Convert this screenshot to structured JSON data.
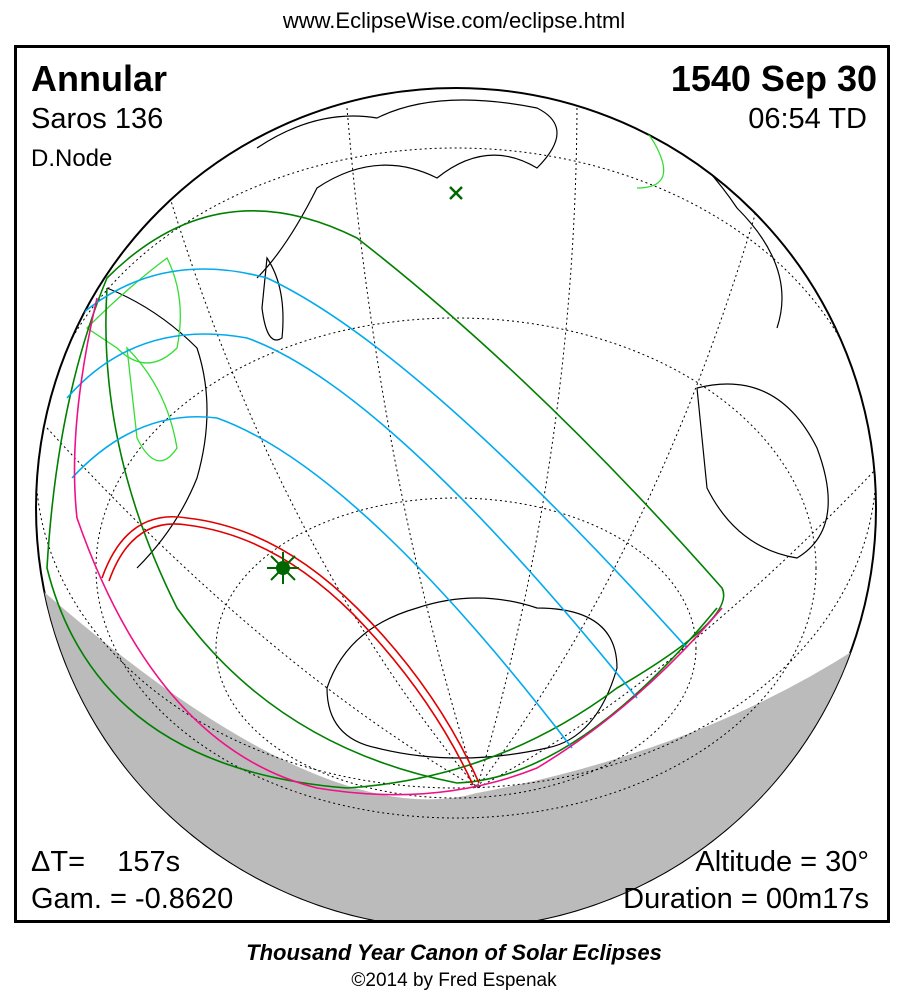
{
  "header": {
    "url": "www.EclipseWise.com/eclipse.html"
  },
  "eclipse": {
    "type": "Annular",
    "saros": "Saros 136",
    "node": "D.Node",
    "date": "1540 Sep 30",
    "time": "06:54 TD",
    "delta_t": "ΔT=    157s",
    "gamma": "Gam. = -0.8620",
    "altitude": "Altitude = 30°",
    "duration": "Duration = 00m17s"
  },
  "footer": {
    "title": "Thousand Year Canon of Solar Eclipses",
    "copyright": "©2014 by Fred Espenak"
  },
  "colors": {
    "central_path": "#e00000",
    "penumbral_limits": "#008000",
    "isochrones": "#00aaee",
    "rise_set": "#ee1188",
    "land": "#33dd33",
    "night": "#bbbbbb"
  }
}
